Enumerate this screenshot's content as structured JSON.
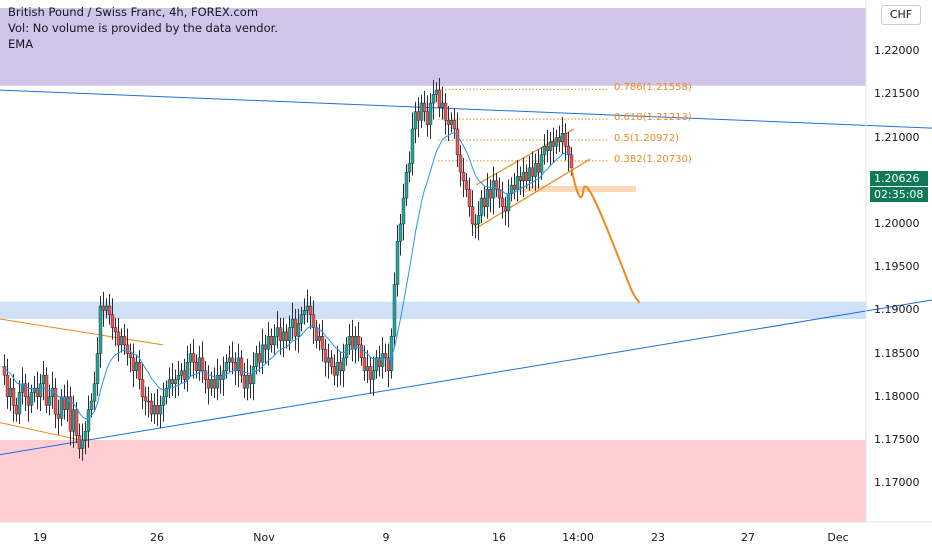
{
  "header": {
    "title": "British Pound / Swiss Franc, 4h, FOREX.com",
    "volume_note": "Vol: No volume is provided by the data vendor.",
    "indicator": "EMA"
  },
  "currency_button": "CHF",
  "current_price": {
    "value": "1.20626",
    "countdown": "02:35:08",
    "color": "#0e7a57"
  },
  "colors": {
    "up": "#26a69a",
    "down": "#ef5350",
    "ema": "#2196f3",
    "fib": "#f0891e",
    "trend": "#1e6fd9",
    "supply_zone": "#d1c4e9",
    "demand_zone": "#ffcdd2",
    "support_zone": "#cfe0f7"
  },
  "chart_data": {
    "type": "candlestick",
    "title": "British Pound / Swiss Franc, 4h, FOREX.com",
    "ylim": [
      1.1655,
      1.225
    ],
    "y_ticks": [
      "1.22000",
      "1.21500",
      "1.21000",
      "1.20500",
      "1.20000",
      "1.19500",
      "1.19000",
      "1.18500",
      "1.18000",
      "1.17500",
      "1.17000"
    ],
    "x_ticks": [
      "19",
      "26",
      "Nov",
      "9",
      "16",
      "14:00",
      "23",
      "27",
      "Dec"
    ],
    "fib_levels": [
      {
        "label": "0.786(1.21558)",
        "value": 1.21558
      },
      {
        "label": "0.618(1.21213)",
        "value": 1.21213
      },
      {
        "label": "0.5(1.20972)",
        "value": 1.20972
      },
      {
        "label": "0.382(1.20730)",
        "value": 1.2073
      }
    ],
    "zones": [
      {
        "name": "supply",
        "from": 1.216,
        "to": 1.225
      },
      {
        "name": "support",
        "from": 1.189,
        "to": 1.191
      },
      {
        "name": "demand",
        "from": 1.1655,
        "to": 1.175
      },
      {
        "name": "breakout",
        "from": 1.2037,
        "to": 1.2044
      }
    ],
    "close_path": [
      [
        1.1835,
        0
      ],
      [
        1.1825,
        3
      ],
      [
        1.18,
        6
      ],
      [
        1.181,
        9
      ],
      [
        1.179,
        12
      ],
      [
        1.178,
        15
      ],
      [
        1.1805,
        18
      ],
      [
        1.1815,
        21
      ],
      [
        1.18,
        24
      ],
      [
        1.179,
        27
      ],
      [
        1.1805,
        30
      ],
      [
        1.181,
        33
      ],
      [
        1.18,
        36
      ],
      [
        1.1815,
        39
      ],
      [
        1.1825,
        42
      ],
      [
        1.179,
        45
      ],
      [
        1.18,
        48
      ],
      [
        1.181,
        51
      ],
      [
        1.178,
        54
      ],
      [
        1.1775,
        57
      ],
      [
        1.18,
        60
      ],
      [
        1.1785,
        63
      ],
      [
        1.18,
        66
      ],
      [
        1.176,
        69
      ],
      [
        1.1785,
        72
      ],
      [
        1.1755,
        75
      ],
      [
        1.174,
        78
      ],
      [
        1.175,
        81
      ],
      [
        1.176,
        84
      ],
      [
        1.1785,
        87
      ],
      [
        1.1795,
        90
      ],
      [
        1.1815,
        93
      ],
      [
        1.185,
        96
      ],
      [
        1.1905,
        99
      ],
      [
        1.19,
        102
      ],
      [
        1.1905,
        105
      ],
      [
        1.1895,
        108
      ],
      [
        1.188,
        111
      ],
      [
        1.1875,
        114
      ],
      [
        1.186,
        117
      ],
      [
        1.187,
        120
      ],
      [
        1.186,
        123
      ],
      [
        1.185,
        126
      ],
      [
        1.1845,
        129
      ],
      [
        1.183,
        132
      ],
      [
        1.184,
        135
      ],
      [
        1.182,
        138
      ],
      [
        1.18,
        141
      ],
      [
        1.1795,
        144
      ],
      [
        1.1795,
        147
      ],
      [
        1.178,
        150
      ],
      [
        1.179,
        153
      ],
      [
        1.178,
        156
      ],
      [
        1.179,
        159
      ],
      [
        1.18,
        162
      ],
      [
        1.181,
        165
      ],
      [
        1.182,
        168
      ],
      [
        1.1815,
        171
      ],
      [
        1.182,
        174
      ],
      [
        1.1825,
        177
      ],
      [
        1.183,
        180
      ],
      [
        1.182,
        183
      ],
      [
        1.184,
        186
      ],
      [
        1.185,
        189
      ],
      [
        1.184,
        192
      ],
      [
        1.183,
        195
      ],
      [
        1.1845,
        198
      ],
      [
        1.183,
        201
      ],
      [
        1.182,
        204
      ],
      [
        1.181,
        207
      ],
      [
        1.182,
        210
      ],
      [
        1.181,
        213
      ],
      [
        1.1825,
        216
      ],
      [
        1.182,
        219
      ],
      [
        1.183,
        222
      ],
      [
        1.184,
        225
      ],
      [
        1.1845,
        228
      ],
      [
        1.184,
        231
      ],
      [
        1.183,
        234
      ],
      [
        1.1845,
        237
      ],
      [
        1.1825,
        240
      ],
      [
        1.181,
        243
      ],
      [
        1.1825,
        246
      ],
      [
        1.1815,
        249
      ],
      [
        1.1835,
        252
      ],
      [
        1.185,
        255
      ],
      [
        1.184,
        258
      ],
      [
        1.186,
        261
      ],
      [
        1.1855,
        264
      ],
      [
        1.187,
        267
      ],
      [
        1.186,
        270
      ],
      [
        1.187,
        273
      ],
      [
        1.188,
        276
      ],
      [
        1.1865,
        279
      ],
      [
        1.1875,
        282
      ],
      [
        1.1865,
        285
      ],
      [
        1.188,
        288
      ],
      [
        1.189,
        291
      ],
      [
        1.187,
        294
      ],
      [
        1.1885,
        297
      ],
      [
        1.1895,
        300
      ],
      [
        1.19,
        303
      ],
      [
        1.1905,
        306
      ],
      [
        1.1895,
        309
      ],
      [
        1.188,
        312
      ],
      [
        1.1865,
        315
      ],
      [
        1.187,
        318
      ],
      [
        1.1855,
        321
      ],
      [
        1.184,
        324
      ],
      [
        1.1845,
        327
      ],
      [
        1.1835,
        330
      ],
      [
        1.1825,
        333
      ],
      [
        1.184,
        336
      ],
      [
        1.183,
        339
      ],
      [
        1.1845,
        342
      ],
      [
        1.186,
        345
      ],
      [
        1.187,
        348
      ],
      [
        1.1855,
        351
      ],
      [
        1.187,
        354
      ],
      [
        1.186,
        357
      ],
      [
        1.1845,
        360
      ],
      [
        1.183,
        363
      ],
      [
        1.1835,
        366
      ],
      [
        1.182,
        369
      ],
      [
        1.183,
        372
      ],
      [
        1.1845,
        375
      ],
      [
        1.1835,
        378
      ],
      [
        1.185,
        381
      ],
      [
        1.1845,
        384
      ],
      [
        1.183,
        387
      ],
      [
        1.187,
        390
      ],
      [
        1.193,
        393
      ],
      [
        1.198,
        396
      ],
      [
        1.2,
        399
      ],
      [
        1.203,
        402
      ],
      [
        1.206,
        405
      ],
      [
        1.207,
        408
      ],
      [
        1.211,
        411
      ],
      [
        1.213,
        414
      ],
      [
        1.212,
        417
      ],
      [
        1.214,
        420
      ],
      [
        1.213,
        423
      ],
      [
        1.2115,
        426
      ],
      [
        1.214,
        429
      ],
      [
        1.215,
        432
      ],
      [
        1.2155,
        435
      ],
      [
        1.2135,
        438
      ],
      [
        1.214,
        441
      ],
      [
        1.212,
        444
      ],
      [
        1.2115,
        447
      ],
      [
        1.212,
        450
      ],
      [
        1.211,
        453
      ],
      [
        1.208,
        456
      ],
      [
        1.206,
        459
      ],
      [
        1.205,
        462
      ],
      [
        1.204,
        465
      ],
      [
        1.202,
        468
      ],
      [
        1.2,
        471
      ],
      [
        1.2,
        474
      ],
      [
        1.201,
        477
      ],
      [
        1.203,
        480
      ],
      [
        1.202,
        483
      ],
      [
        1.204,
        486
      ],
      [
        1.203,
        489
      ],
      [
        1.205,
        492
      ],
      [
        1.204,
        495
      ],
      [
        1.203,
        498
      ],
      [
        1.202,
        501
      ],
      [
        1.2015,
        504
      ],
      [
        1.2035,
        507
      ],
      [
        1.2045,
        510
      ],
      [
        1.204,
        513
      ],
      [
        1.2055,
        516
      ],
      [
        1.205,
        519
      ],
      [
        1.206,
        522
      ],
      [
        1.205,
        525
      ],
      [
        1.2065,
        528
      ],
      [
        1.2055,
        531
      ],
      [
        1.207,
        534
      ],
      [
        1.206,
        537
      ],
      [
        1.208,
        540
      ],
      [
        1.209,
        543
      ],
      [
        1.2085,
        546
      ],
      [
        1.2095,
        549
      ],
      [
        1.209,
        552
      ],
      [
        1.21,
        555
      ],
      [
        1.2095,
        558
      ],
      [
        1.2105,
        561
      ],
      [
        1.209,
        564
      ],
      [
        1.208,
        567
      ],
      [
        1.2065,
        570
      ]
    ]
  }
}
